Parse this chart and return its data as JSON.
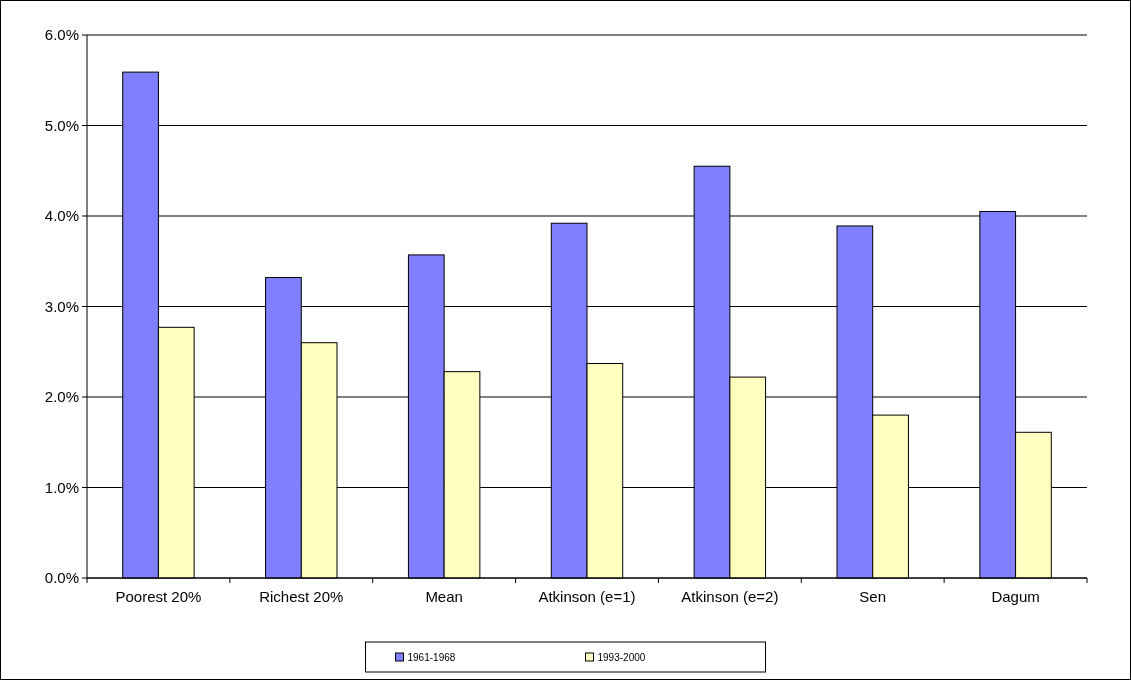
{
  "chart_data": {
    "type": "bar",
    "categories": [
      "Poorest 20%",
      "Richest 20%",
      "Mean",
      "Atkinson (e=1)",
      "Atkinson (e=2)",
      "Sen",
      "Dagum"
    ],
    "series": [
      {
        "name": "1961-1968",
        "color": "#8080ff",
        "values": [
          5.59,
          3.32,
          3.57,
          3.92,
          4.55,
          3.89,
          4.05
        ]
      },
      {
        "name": "1993-2000",
        "color": "#ffffc0",
        "values": [
          2.77,
          2.6,
          2.28,
          2.37,
          2.22,
          1.8,
          1.61
        ]
      }
    ],
    "ylim": [
      0,
      6
    ],
    "yticks": [
      {
        "value": 0,
        "label": "0.0%"
      },
      {
        "value": 1,
        "label": "1.0%"
      },
      {
        "value": 2,
        "label": "2.0%"
      },
      {
        "value": 3,
        "label": "3.0%"
      },
      {
        "value": 4,
        "label": "4.0%"
      },
      {
        "value": 5,
        "label": "5.0%"
      },
      {
        "value": 6,
        "label": "6.0%"
      }
    ],
    "grid": "y",
    "legend": "bottom"
  }
}
